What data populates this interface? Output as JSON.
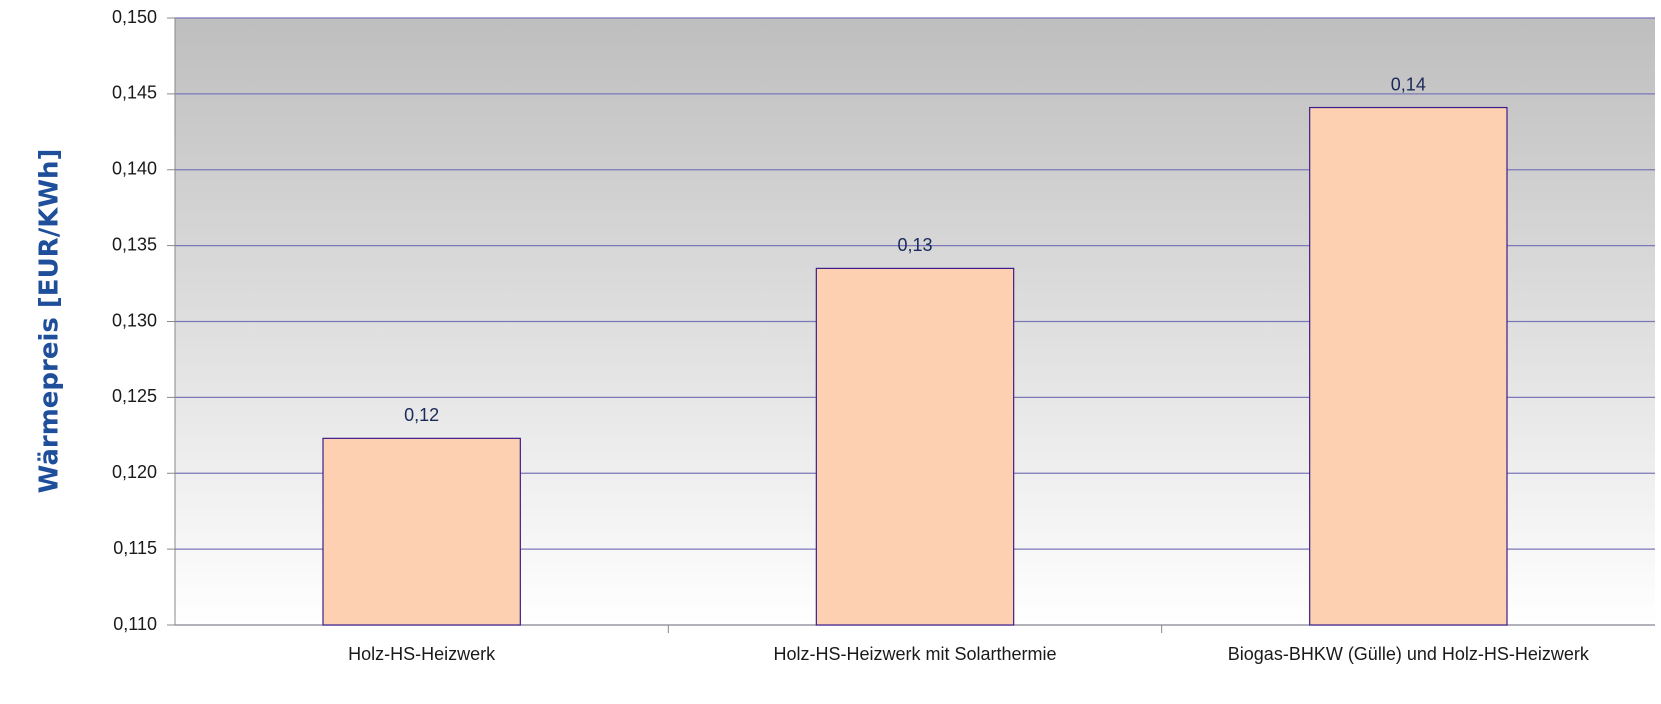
{
  "chart_data": {
    "type": "bar",
    "y_label": "Wärmepreis [EUR/KWh]",
    "categories": [
      "Holz-HS-Heizwerk",
      "Holz-HS-Heizwerk mit Solarthermie",
      "Biogas-BHKW (Gülle) und Holz-HS-Heizwerk"
    ],
    "values": [
      0.1223,
      0.1335,
      0.1441
    ],
    "value_labels": [
      "0,12",
      "0,13",
      "0,14"
    ],
    "color": "#fcd0b0",
    "ylim": [
      0.11,
      0.15
    ],
    "yticks": [
      {
        "value": 0.11,
        "label": "0,110"
      },
      {
        "value": 0.115,
        "label": "0,115"
      },
      {
        "value": 0.12,
        "label": "0,120"
      },
      {
        "value": 0.125,
        "label": "0,125"
      },
      {
        "value": 0.13,
        "label": "0,130"
      },
      {
        "value": 0.135,
        "label": "0,135"
      },
      {
        "value": 0.14,
        "label": "0,140"
      },
      {
        "value": 0.145,
        "label": "0,145"
      },
      {
        "value": 0.15,
        "label": "0,150"
      }
    ],
    "grid": true
  }
}
